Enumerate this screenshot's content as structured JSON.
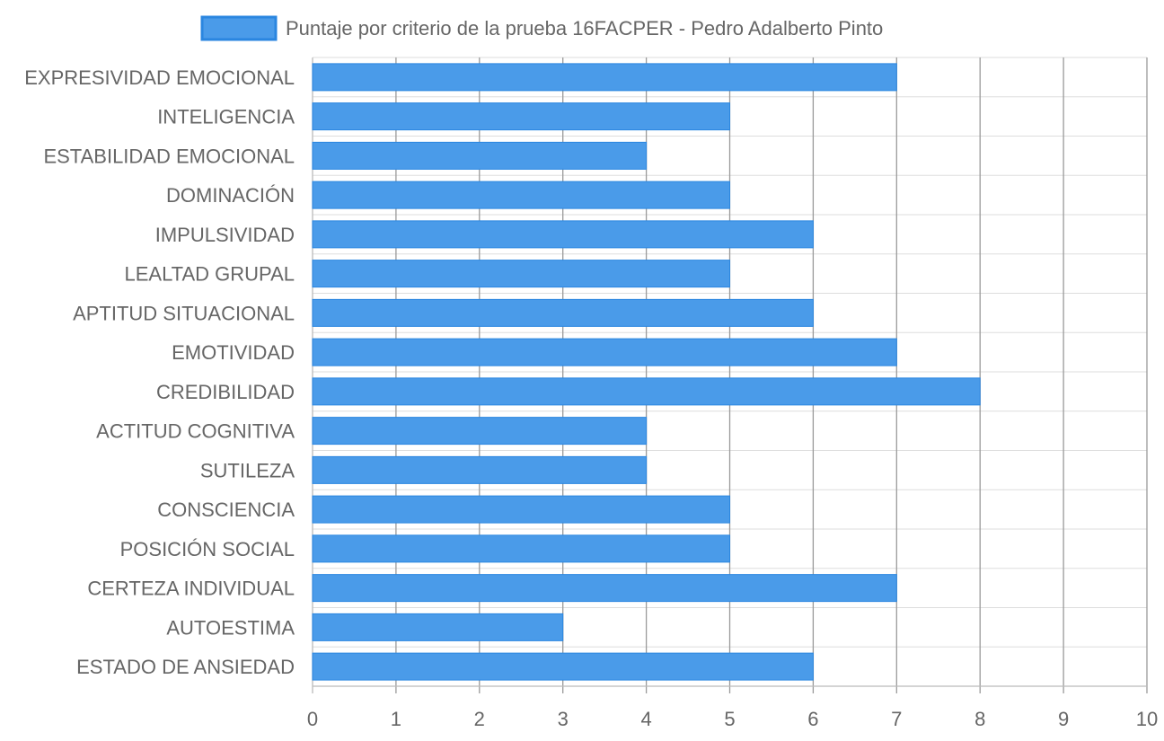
{
  "chart_data": {
    "type": "bar",
    "orientation": "horizontal",
    "title": "",
    "xlabel": "",
    "ylabel": "",
    "categories": [
      "EXPRESIVIDAD EMOCIONAL",
      "INTELIGENCIA",
      "ESTABILIDAD EMOCIONAL",
      "DOMINACIÓN",
      "IMPULSIVIDAD",
      "LEALTAD GRUPAL",
      "APTITUD SITUACIONAL",
      "EMOTIVIDAD",
      "CREDIBILIDAD",
      "ACTITUD COGNITIVA",
      "SUTILEZA",
      "CONSCIENCIA",
      "POSICIÓN SOCIAL",
      "CERTEZA INDIVIDUAL",
      "AUTOESTIMA",
      "ESTADO DE ANSIEDAD"
    ],
    "series": [
      {
        "name": "Puntaje por criterio de la prueba 16FACPER - Pedro Adalberto Pinto",
        "values": [
          7,
          5,
          4,
          5,
          6,
          5,
          6,
          7,
          8,
          4,
          4,
          5,
          5,
          7,
          3,
          6
        ],
        "color": "#4a9be9",
        "border_color": "#2a86e0"
      }
    ],
    "xlim": [
      0,
      10
    ],
    "x_ticks": [
      "0",
      "1",
      "2",
      "3",
      "4",
      "5",
      "6",
      "7",
      "8",
      "9",
      "10"
    ],
    "grid": true,
    "legend_position": "top"
  }
}
